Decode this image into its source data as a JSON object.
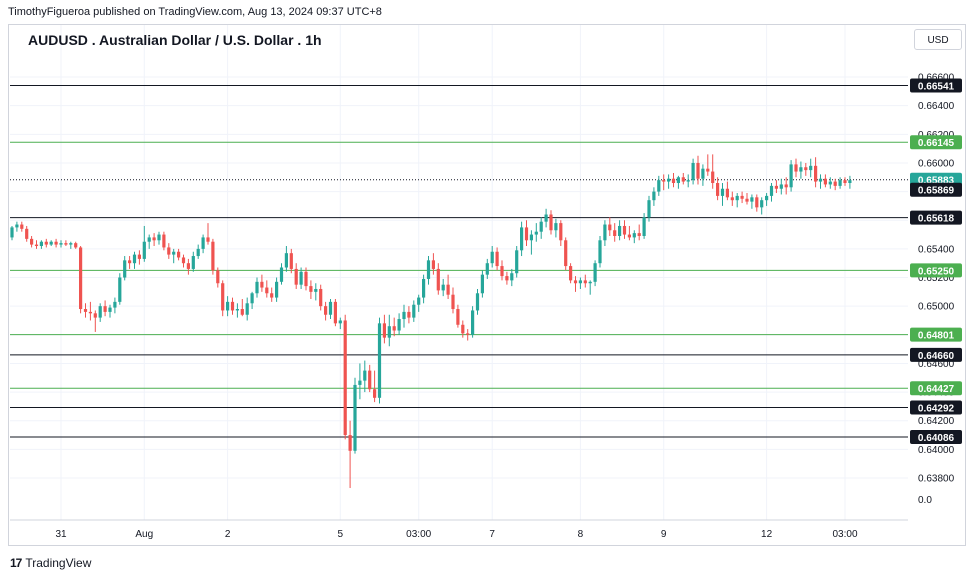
{
  "publisher_line": "TimothyFigueroa published on TradingView.com, Aug 13, 2024 09:37 UTC+8",
  "currency_button": "USD",
  "brand": {
    "mark": "17",
    "name": "TradingView"
  },
  "colors": {
    "up": "#26a69a",
    "down": "#ef5350",
    "level_green": "#4caf50",
    "level_black": "#131722",
    "grid": "#f0f3fa"
  },
  "chart_data": {
    "type": "candlestick",
    "title": "AUDUSD . Australian Dollar / U.S. Dollar . 1h",
    "ylim": [
      0.637,
      0.6667
    ],
    "y_ticks": [
      "0.66600",
      "0.66400",
      "0.66200",
      "0.66000",
      "0.65800",
      "0.65600",
      "0.65400",
      "0.65200",
      "0.65000",
      "0.64800",
      "0.64600",
      "0.64400",
      "0.64200",
      "0.64000",
      "0.63800"
    ],
    "y_tick_values": [
      0.666,
      0.664,
      0.662,
      0.66,
      0.658,
      0.656,
      0.654,
      0.652,
      0.65,
      0.648,
      0.646,
      0.644,
      0.642,
      0.64,
      0.638
    ],
    "extra_axis_label": "0.0",
    "x_ticks": [
      {
        "label": "31",
        "index": 10
      },
      {
        "label": "Aug",
        "index": 27
      },
      {
        "label": "2",
        "index": 44
      },
      {
        "label": "5",
        "index": 67
      },
      {
        "label": "03:00",
        "index": 83
      },
      {
        "label": "7",
        "index": 98
      },
      {
        "label": "8",
        "index": 116
      },
      {
        "label": "9",
        "index": 133
      },
      {
        "label": "12",
        "index": 154
      },
      {
        "label": "03:00",
        "index": 170
      }
    ],
    "levels": [
      {
        "value": 0.66541,
        "label": "0.66541",
        "color": "black"
      },
      {
        "value": 0.66145,
        "label": "0.66145",
        "color": "green"
      },
      {
        "value": 0.65618,
        "label": "0.65618",
        "color": "black"
      },
      {
        "value": 0.6525,
        "label": "0.65250",
        "color": "green"
      },
      {
        "value": 0.64801,
        "label": "0.64801",
        "color": "green"
      },
      {
        "value": 0.6466,
        "label": "0.64660",
        "color": "black"
      },
      {
        "value": 0.64427,
        "label": "0.64427",
        "color": "green"
      },
      {
        "value": 0.64292,
        "label": "0.64292",
        "color": "black"
      },
      {
        "value": 0.64086,
        "label": "0.64086",
        "color": "black"
      }
    ],
    "last_price": {
      "value": 0.65883,
      "label": "0.65883"
    },
    "prev_close": {
      "value": 0.65869,
      "label": "0.65869"
    },
    "candles": [
      [
        0.6548,
        0.6556,
        0.6546,
        0.6555
      ],
      [
        0.6555,
        0.6559,
        0.6552,
        0.6557
      ],
      [
        0.6557,
        0.6559,
        0.6552,
        0.6554
      ],
      [
        0.6554,
        0.6556,
        0.6545,
        0.6547
      ],
      [
        0.6547,
        0.6549,
        0.6541,
        0.6543
      ],
      [
        0.6543,
        0.6546,
        0.654,
        0.6542
      ],
      [
        0.6542,
        0.6546,
        0.654,
        0.6545
      ],
      [
        0.6545,
        0.6547,
        0.6541,
        0.6543
      ],
      [
        0.6543,
        0.6546,
        0.6542,
        0.6545
      ],
      [
        0.6545,
        0.6547,
        0.6541,
        0.6543
      ],
      [
        0.6543,
        0.6546,
        0.6541,
        0.6544
      ],
      [
        0.6544,
        0.6546,
        0.6542,
        0.6543
      ],
      [
        0.6543,
        0.6545,
        0.654,
        0.6544
      ],
      [
        0.6544,
        0.6545,
        0.654,
        0.6541
      ],
      [
        0.6541,
        0.6542,
        0.6495,
        0.6498
      ],
      [
        0.6498,
        0.6502,
        0.6492,
        0.6496
      ],
      [
        0.6496,
        0.6503,
        0.649,
        0.6495
      ],
      [
        0.6495,
        0.6497,
        0.6482,
        0.6492
      ],
      [
        0.6492,
        0.6502,
        0.6489,
        0.65
      ],
      [
        0.65,
        0.6504,
        0.6493,
        0.6496
      ],
      [
        0.6496,
        0.6501,
        0.6492,
        0.6499
      ],
      [
        0.6499,
        0.6506,
        0.6495,
        0.6503
      ],
      [
        0.6503,
        0.6523,
        0.6501,
        0.652
      ],
      [
        0.652,
        0.6535,
        0.6518,
        0.6532
      ],
      [
        0.6532,
        0.6535,
        0.6526,
        0.653
      ],
      [
        0.653,
        0.6538,
        0.6526,
        0.6536
      ],
      [
        0.6536,
        0.6539,
        0.6529,
        0.6533
      ],
      [
        0.6533,
        0.6556,
        0.6531,
        0.6545
      ],
      [
        0.6545,
        0.655,
        0.654,
        0.6548
      ],
      [
        0.6548,
        0.6551,
        0.6542,
        0.6546
      ],
      [
        0.6546,
        0.6552,
        0.6543,
        0.655
      ],
      [
        0.655,
        0.6552,
        0.6539,
        0.6541
      ],
      [
        0.6541,
        0.6544,
        0.6533,
        0.6536
      ],
      [
        0.6536,
        0.654,
        0.653,
        0.6538
      ],
      [
        0.6538,
        0.654,
        0.6532,
        0.6534
      ],
      [
        0.6534,
        0.6536,
        0.6527,
        0.653
      ],
      [
        0.653,
        0.6533,
        0.6522,
        0.6526
      ],
      [
        0.6526,
        0.6538,
        0.6524,
        0.6535
      ],
      [
        0.6535,
        0.6543,
        0.6533,
        0.654
      ],
      [
        0.654,
        0.655,
        0.6537,
        0.6548
      ],
      [
        0.6548,
        0.6558,
        0.6543,
        0.6545
      ],
      [
        0.6545,
        0.6547,
        0.6522,
        0.6525
      ],
      [
        0.6525,
        0.6527,
        0.6513,
        0.6516
      ],
      [
        0.6516,
        0.6518,
        0.6493,
        0.6497
      ],
      [
        0.6497,
        0.6507,
        0.6493,
        0.6503
      ],
      [
        0.6503,
        0.6506,
        0.6494,
        0.6497
      ],
      [
        0.6497,
        0.6502,
        0.6492,
        0.6498
      ],
      [
        0.6498,
        0.6505,
        0.6493,
        0.6494
      ],
      [
        0.6494,
        0.6506,
        0.649,
        0.6502
      ],
      [
        0.6502,
        0.651,
        0.6498,
        0.6509
      ],
      [
        0.6509,
        0.652,
        0.6506,
        0.6517
      ],
      [
        0.6517,
        0.6522,
        0.651,
        0.6513
      ],
      [
        0.6513,
        0.6518,
        0.6506,
        0.6509
      ],
      [
        0.6509,
        0.6513,
        0.6503,
        0.6506
      ],
      [
        0.6506,
        0.652,
        0.6503,
        0.6517
      ],
      [
        0.6517,
        0.653,
        0.6515,
        0.6527
      ],
      [
        0.6527,
        0.6542,
        0.6524,
        0.6537
      ],
      [
        0.6537,
        0.654,
        0.6523,
        0.6526
      ],
      [
        0.6526,
        0.653,
        0.6512,
        0.6515
      ],
      [
        0.6515,
        0.6527,
        0.6512,
        0.6524
      ],
      [
        0.6524,
        0.6527,
        0.6511,
        0.6514
      ],
      [
        0.6514,
        0.6518,
        0.6505,
        0.651
      ],
      [
        0.651,
        0.6516,
        0.6504,
        0.6512
      ],
      [
        0.6512,
        0.6515,
        0.6497,
        0.65
      ],
      [
        0.65,
        0.6503,
        0.649,
        0.6494
      ],
      [
        0.6494,
        0.6505,
        0.6491,
        0.6503
      ],
      [
        0.6503,
        0.6505,
        0.6486,
        0.6488
      ],
      [
        0.6488,
        0.6492,
        0.6484,
        0.649
      ],
      [
        0.649,
        0.6494,
        0.6407,
        0.641
      ],
      [
        0.641,
        0.642,
        0.6373,
        0.6399
      ],
      [
        0.6399,
        0.645,
        0.6397,
        0.6445
      ],
      [
        0.6445,
        0.646,
        0.6435,
        0.6448
      ],
      [
        0.6448,
        0.6462,
        0.644,
        0.6455
      ],
      [
        0.6455,
        0.6459,
        0.644,
        0.6442
      ],
      [
        0.6442,
        0.6455,
        0.6433,
        0.6436
      ],
      [
        0.6436,
        0.6492,
        0.6432,
        0.6488
      ],
      [
        0.6488,
        0.6494,
        0.6474,
        0.6478
      ],
      [
        0.6478,
        0.6494,
        0.6472,
        0.6486
      ],
      [
        0.6486,
        0.6492,
        0.6479,
        0.6483
      ],
      [
        0.6483,
        0.6495,
        0.648,
        0.6491
      ],
      [
        0.6491,
        0.6501,
        0.6485,
        0.6496
      ],
      [
        0.6496,
        0.65,
        0.6488,
        0.6492
      ],
      [
        0.6492,
        0.6504,
        0.6489,
        0.6501
      ],
      [
        0.6501,
        0.6508,
        0.6496,
        0.6506
      ],
      [
        0.6506,
        0.6522,
        0.6502,
        0.6519
      ],
      [
        0.6519,
        0.6535,
        0.6515,
        0.6532
      ],
      [
        0.6532,
        0.6537,
        0.6522,
        0.6526
      ],
      [
        0.6526,
        0.653,
        0.6508,
        0.6511
      ],
      [
        0.6511,
        0.6519,
        0.6507,
        0.6515
      ],
      [
        0.6515,
        0.6522,
        0.6505,
        0.6508
      ],
      [
        0.6508,
        0.6513,
        0.6495,
        0.6498
      ],
      [
        0.6498,
        0.6501,
        0.6485,
        0.6487
      ],
      [
        0.6487,
        0.649,
        0.6478,
        0.6481
      ],
      [
        0.6481,
        0.6484,
        0.6476,
        0.648
      ],
      [
        0.648,
        0.65,
        0.6478,
        0.6497
      ],
      [
        0.6497,
        0.6512,
        0.6494,
        0.6509
      ],
      [
        0.6509,
        0.6525,
        0.6506,
        0.6522
      ],
      [
        0.6522,
        0.6533,
        0.6519,
        0.653
      ],
      [
        0.653,
        0.6542,
        0.6527,
        0.6538
      ],
      [
        0.6538,
        0.6541,
        0.6525,
        0.6528
      ],
      [
        0.6528,
        0.6532,
        0.6518,
        0.6521
      ],
      [
        0.6521,
        0.6524,
        0.6515,
        0.6518
      ],
      [
        0.6518,
        0.6526,
        0.6514,
        0.6523
      ],
      [
        0.6523,
        0.6542,
        0.652,
        0.6539
      ],
      [
        0.6539,
        0.6559,
        0.6535,
        0.6555
      ],
      [
        0.6555,
        0.656,
        0.6542,
        0.6546
      ],
      [
        0.6546,
        0.6553,
        0.6536,
        0.655
      ],
      [
        0.655,
        0.6558,
        0.6545,
        0.6552
      ],
      [
        0.6552,
        0.6562,
        0.6547,
        0.6559
      ],
      [
        0.6559,
        0.6568,
        0.6555,
        0.6564
      ],
      [
        0.6564,
        0.6567,
        0.655,
        0.6553
      ],
      [
        0.6553,
        0.6561,
        0.6548,
        0.6558
      ],
      [
        0.6558,
        0.656,
        0.6542,
        0.6546
      ],
      [
        0.6546,
        0.6548,
        0.6525,
        0.6528
      ],
      [
        0.6528,
        0.653,
        0.6516,
        0.6518
      ],
      [
        0.6518,
        0.6521,
        0.651,
        0.6516
      ],
      [
        0.6516,
        0.652,
        0.6512,
        0.6518
      ],
      [
        0.6518,
        0.6522,
        0.6513,
        0.6516
      ],
      [
        0.6516,
        0.6518,
        0.6508,
        0.6517
      ],
      [
        0.6517,
        0.6532,
        0.6514,
        0.653
      ],
      [
        0.653,
        0.6549,
        0.6527,
        0.6546
      ],
      [
        0.6546,
        0.656,
        0.6542,
        0.6557
      ],
      [
        0.6557,
        0.6562,
        0.6549,
        0.6553
      ],
      [
        0.6553,
        0.6558,
        0.6545,
        0.6549
      ],
      [
        0.6549,
        0.656,
        0.6546,
        0.6556
      ],
      [
        0.6556,
        0.656,
        0.6547,
        0.655
      ],
      [
        0.655,
        0.6556,
        0.6546,
        0.6548
      ],
      [
        0.6548,
        0.6553,
        0.6544,
        0.6551
      ],
      [
        0.6551,
        0.6557,
        0.6546,
        0.6549
      ],
      [
        0.6549,
        0.6565,
        0.6547,
        0.6562
      ],
      [
        0.6562,
        0.6577,
        0.6559,
        0.6574
      ],
      [
        0.6574,
        0.6583,
        0.657,
        0.658
      ],
      [
        0.658,
        0.6591,
        0.6577,
        0.6588
      ],
      [
        0.6588,
        0.6592,
        0.6581,
        0.6587
      ],
      [
        0.6587,
        0.6592,
        0.6582,
        0.6589
      ],
      [
        0.6589,
        0.6593,
        0.6583,
        0.6586
      ],
      [
        0.6586,
        0.6591,
        0.6582,
        0.659
      ],
      [
        0.659,
        0.6593,
        0.6585,
        0.6587
      ],
      [
        0.6587,
        0.6592,
        0.6583,
        0.6588
      ],
      [
        0.6588,
        0.6603,
        0.6585,
        0.66
      ],
      [
        0.66,
        0.6605,
        0.6585,
        0.6589
      ],
      [
        0.6589,
        0.6599,
        0.6584,
        0.6596
      ],
      [
        0.6596,
        0.6606,
        0.6591,
        0.6594
      ],
      [
        0.6594,
        0.6606,
        0.6582,
        0.6586
      ],
      [
        0.6586,
        0.659,
        0.6574,
        0.6577
      ],
      [
        0.6577,
        0.6586,
        0.657,
        0.6582
      ],
      [
        0.6582,
        0.6587,
        0.6574,
        0.6576
      ],
      [
        0.6576,
        0.658,
        0.657,
        0.6574
      ],
      [
        0.6574,
        0.6579,
        0.6569,
        0.6577
      ],
      [
        0.6577,
        0.658,
        0.6572,
        0.6575
      ],
      [
        0.6575,
        0.6579,
        0.6571,
        0.6573
      ],
      [
        0.6573,
        0.6578,
        0.6568,
        0.6576
      ],
      [
        0.6576,
        0.6578,
        0.6566,
        0.6569
      ],
      [
        0.6569,
        0.6576,
        0.6564,
        0.6574
      ],
      [
        0.6574,
        0.6579,
        0.657,
        0.6577
      ],
      [
        0.6577,
        0.6586,
        0.6573,
        0.6584
      ],
      [
        0.6584,
        0.6588,
        0.6579,
        0.6582
      ],
      [
        0.6582,
        0.6589,
        0.6578,
        0.6585
      ],
      [
        0.6585,
        0.659,
        0.6578,
        0.6583
      ],
      [
        0.6583,
        0.6602,
        0.658,
        0.6599
      ],
      [
        0.6599,
        0.6603,
        0.659,
        0.6594
      ],
      [
        0.6594,
        0.6601,
        0.6589,
        0.6597
      ],
      [
        0.6597,
        0.66,
        0.6591,
        0.6595
      ],
      [
        0.6595,
        0.6603,
        0.659,
        0.6598
      ],
      [
        0.6598,
        0.6604,
        0.6583,
        0.6587
      ],
      [
        0.6587,
        0.6592,
        0.6582,
        0.6589
      ],
      [
        0.6589,
        0.6592,
        0.6583,
        0.6585
      ],
      [
        0.6585,
        0.659,
        0.6582,
        0.6587
      ],
      [
        0.6587,
        0.6589,
        0.6581,
        0.6584
      ],
      [
        0.6584,
        0.659,
        0.6582,
        0.6588
      ],
      [
        0.6588,
        0.659,
        0.6584,
        0.6586
      ],
      [
        0.6586,
        0.6591,
        0.6582,
        0.6588
      ]
    ]
  }
}
